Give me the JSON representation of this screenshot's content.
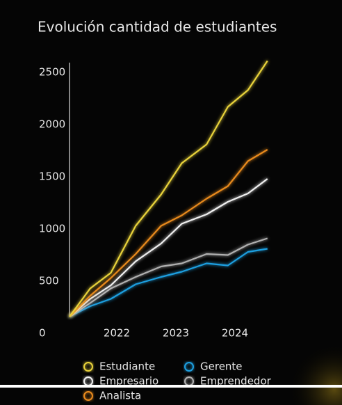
{
  "chart_data": {
    "type": "line",
    "title": "Evolución cantidad de estudiantes",
    "x": [
      2021.2,
      2021.55,
      2021.9,
      2022.32,
      2022.75,
      2023.1,
      2023.52,
      2023.88,
      2024.22,
      2024.55
    ],
    "series": [
      {
        "name": "Estudiante",
        "color": "#e8d23a",
        "values": [
          160,
          430,
          580,
          1030,
          1330,
          1630,
          1810,
          2170,
          2330,
          2610
        ]
      },
      {
        "name": "Analista",
        "color": "#e88a1e",
        "values": [
          160,
          360,
          530,
          760,
          1030,
          1130,
          1290,
          1410,
          1650,
          1760
        ]
      },
      {
        "name": "Empresario",
        "color": "#f0f0f0",
        "values": [
          160,
          330,
          460,
          690,
          860,
          1050,
          1140,
          1260,
          1340,
          1480
        ]
      },
      {
        "name": "Emprendedor",
        "color": "#b0b0b0",
        "values": [
          160,
          290,
          430,
          540,
          640,
          670,
          760,
          750,
          850,
          910
        ]
      },
      {
        "name": "Gerente",
        "color": "#1e9fe0",
        "values": [
          160,
          260,
          330,
          470,
          540,
          590,
          670,
          650,
          780,
          810
        ]
      }
    ],
    "xlim": [
      2021.2,
      2024.6
    ],
    "xticks": [
      2022,
      2023,
      2024
    ],
    "ylim": [
      0,
      2650
    ],
    "yticks": [
      0,
      500,
      1000,
      1500,
      2000,
      2500
    ]
  }
}
